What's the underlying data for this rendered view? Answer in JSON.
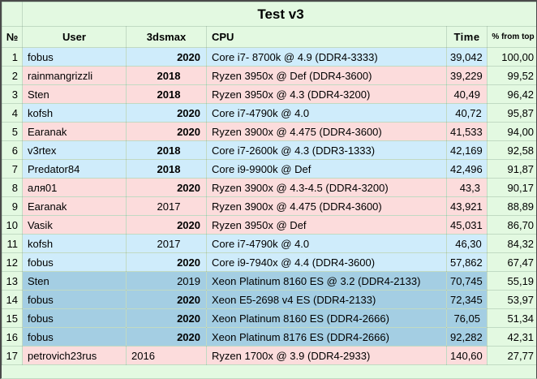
{
  "title": "Test v3",
  "columns": [
    {
      "key": "num",
      "label": "№"
    },
    {
      "key": "user",
      "label": "User"
    },
    {
      "key": "year",
      "label": "3dsmax"
    },
    {
      "key": "cpu",
      "label": "CPU"
    },
    {
      "key": "time",
      "label": "Time"
    },
    {
      "key": "pct",
      "label": "% from top"
    }
  ],
  "colors": {
    "green": "#e3f9e1",
    "blue": "#cfecfb",
    "dark_blue": "#a4cee3",
    "pink": "#fcdcdc",
    "grid": "rgba(115,145,125,0.30)",
    "outer_border": "#4a4a4a",
    "text": "#000000"
  },
  "rows": [
    {
      "num": "1",
      "user": "fobus",
      "year": "2020",
      "year_bold": true,
      "year_align": "right",
      "cpu": "Core i7- 8700k @ 4.9 (DDR4-3333)",
      "time": "39,042",
      "time_align": "right",
      "pct": "100,00",
      "color": "blue"
    },
    {
      "num": "2",
      "user": "rainmangrizzli",
      "year": "2018",
      "year_bold": true,
      "year_align": "center",
      "cpu": "Ryzen 3950x @ Def (DDR4-3600)",
      "time": "39,229",
      "time_align": "right",
      "pct": "99,52",
      "color": "pink"
    },
    {
      "num": "3",
      "user": "Sten",
      "year": "2018",
      "year_bold": true,
      "year_align": "center",
      "cpu": "Ryzen 3950x @ 4.3 (DDR4-3200)",
      "time": "40,49",
      "time_align": "right",
      "pct": "96,42",
      "color": "pink"
    },
    {
      "num": "4",
      "user": "kofsh",
      "year": "2020",
      "year_bold": true,
      "year_align": "right",
      "cpu": "Core i7-4790k @ 4.0",
      "time": "40,72",
      "time_align": "center",
      "pct": "95,87",
      "color": "blue"
    },
    {
      "num": "5",
      "user": "Earanak",
      "year": "2020",
      "year_bold": true,
      "year_align": "right",
      "cpu": "Ryzen 3900x @ 4.475 (DDR4-3600)",
      "time": "41,533",
      "time_align": "right",
      "pct": "94,00",
      "color": "pink"
    },
    {
      "num": "6",
      "user": "v3rtex",
      "year": "2018",
      "year_bold": true,
      "year_align": "center",
      "cpu": "Core i7-2600k @ 4.3 (DDR3-1333)",
      "time": "42,169",
      "time_align": "right",
      "pct": "92,58",
      "color": "blue"
    },
    {
      "num": "7",
      "user": "Predator84",
      "year": "2018",
      "year_bold": true,
      "year_align": "center",
      "cpu": "Core i9-9900k @ Def",
      "time": "42,496",
      "time_align": "right",
      "pct": "91,87",
      "color": "blue"
    },
    {
      "num": "8",
      "user": "аля01",
      "year": "2020",
      "year_bold": true,
      "year_align": "right",
      "cpu": "Ryzen 3900x @ 4.3-4.5 (DDR4-3200)",
      "time": "43,3",
      "time_align": "right",
      "pct": "90,17",
      "color": "pink"
    },
    {
      "num": "9",
      "user": "Earanak",
      "year": "2017",
      "year_bold": false,
      "year_align": "center",
      "cpu": "Ryzen 3900x @ 4.475 (DDR4-3600)",
      "time": "43,921",
      "time_align": "right",
      "pct": "88,89",
      "color": "pink"
    },
    {
      "num": "10",
      "user": "Vasik",
      "year": "2020",
      "year_bold": true,
      "year_align": "right",
      "cpu": "Ryzen 3950x @ Def",
      "time": "45,031",
      "time_align": "right",
      "pct": "86,70",
      "color": "pink"
    },
    {
      "num": "11",
      "user": "kofsh",
      "year": "2017",
      "year_bold": false,
      "year_align": "center",
      "cpu": "Core i7-4790k @ 4.0",
      "time": "46,30",
      "time_align": "center",
      "pct": "84,32",
      "color": "blue"
    },
    {
      "num": "12",
      "user": "fobus",
      "year": "2020",
      "year_bold": true,
      "year_align": "right",
      "cpu": "Core i9-7940x @ 4.4 (DDR4-3600)",
      "time": "57,862",
      "time_align": "right",
      "pct": "67,47",
      "color": "blue"
    },
    {
      "num": "13",
      "user": "Sten",
      "year": "2019",
      "year_bold": false,
      "year_align": "right",
      "cpu": "Xeon Platinum 8160 ES @ 3.2 (DDR4-2133)",
      "time": "70,745",
      "time_align": "right",
      "pct": "55,19",
      "color": "dark_blue"
    },
    {
      "num": "14",
      "user": "fobus",
      "year": "2020",
      "year_bold": true,
      "year_align": "right",
      "cpu": "Xeon E5-2698 v4 ES (DDR4-2133)",
      "time": "72,345",
      "time_align": "right",
      "pct": "53,97",
      "color": "dark_blue"
    },
    {
      "num": "15",
      "user": "fobus",
      "year": "2020",
      "year_bold": true,
      "year_align": "right",
      "cpu": "Xeon Platinum 8160 ES (DDR4-2666)",
      "time": "76,05",
      "time_align": "right",
      "pct": "51,34",
      "color": "dark_blue"
    },
    {
      "num": "16",
      "user": "fobus",
      "year": "2020",
      "year_bold": true,
      "year_align": "right",
      "cpu": "Xeon Platinum 8176 ES (DDR4-2666)",
      "time": "92,282",
      "time_align": "right",
      "pct": "42,31",
      "color": "dark_blue"
    },
    {
      "num": "17",
      "user": "petrovich23rus",
      "year": "2016",
      "year_bold": false,
      "year_align": "left",
      "cpu": "Ryzen 1700x @ 3.9 (DDR4-2933)",
      "time": "140,60",
      "time_align": "right",
      "pct": "27,77",
      "color": "pink"
    }
  ]
}
